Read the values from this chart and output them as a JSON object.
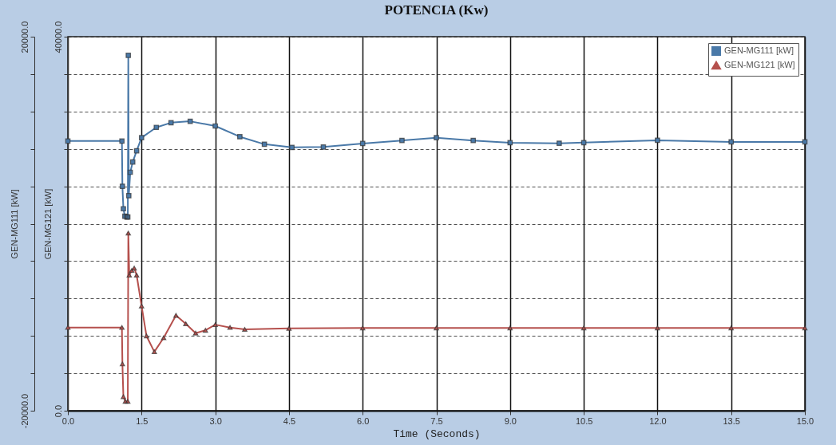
{
  "chart_data": {
    "type": "line",
    "title": "POTENCIA (Kw)",
    "xlabel": "Time (Seconds)",
    "ylabel": "GEN-MG111 [kW]",
    "y2label": "GEN-MG121 [kW]",
    "xlim": [
      0,
      15
    ],
    "xticks": [
      {
        "value": 0,
        "label": "0.0"
      },
      1.5,
      {
        "value": 3,
        "label": "3.0"
      },
      4.5,
      {
        "value": 6,
        "label": "6.0"
      },
      7.5,
      {
        "value": 9,
        "label": "9.0"
      },
      10.5,
      {
        "value": 12,
        "label": "12.0"
      },
      13.5,
      {
        "value": 15,
        "label": "15.0"
      }
    ],
    "ylim": [
      -20000,
      20000
    ],
    "yticks": [
      {
        "value": -20000,
        "label": "-20000.0"
      },
      {
        "value": -16000,
        "label": null
      },
      {
        "value": -12000,
        "label": null
      },
      {
        "value": -8000,
        "label": null
      },
      {
        "value": -4000,
        "label": null
      },
      {
        "value": 0,
        "label": null
      },
      {
        "value": 4000,
        "label": null
      },
      {
        "value": 8000,
        "label": null
      },
      {
        "value": 12000,
        "label": null
      },
      {
        "value": 16000,
        "label": null
      },
      {
        "value": 20000,
        "label": "20000.0"
      }
    ],
    "y2lim": [
      0,
      40000
    ],
    "y2ticks": [
      {
        "value": 0,
        "label": "0.0"
      },
      {
        "value": 4000,
        "label": null
      },
      {
        "value": 8000,
        "label": null
      },
      {
        "value": 12000,
        "label": null
      },
      {
        "value": 16000,
        "label": null
      },
      {
        "value": 20000,
        "label": null
      },
      {
        "value": 24000,
        "label": null
      },
      {
        "value": 28000,
        "label": null
      },
      {
        "value": 32000,
        "label": null
      },
      {
        "value": 36000,
        "label": null
      },
      {
        "value": 40000,
        "label": "40000.0"
      }
    ],
    "grid": true,
    "legend": "top right",
    "line_style": "solid",
    "series": [
      {
        "name": "GEN-MG111 [kW]",
        "color": "#4a79a8",
        "marker": "square",
        "axis": "y",
        "x": [
          0,
          1.1,
          1.11,
          1.13,
          1.16,
          1.2,
          1.22,
          1.23,
          1.24,
          1.27,
          1.32,
          1.4,
          1.5,
          1.8,
          2.1,
          2.49,
          3.0,
          3.5,
          4.0,
          4.56,
          5.2,
          6.0,
          6.8,
          7.5,
          8.25,
          9.0,
          10.0,
          10.5,
          12.0,
          13.5,
          15.0
        ],
        "values": [
          8840,
          8840,
          4000,
          1600,
          800,
          720,
          720,
          18000,
          3000,
          5500,
          6600,
          7800,
          9200,
          10300,
          10800,
          10950,
          10450,
          9300,
          8500,
          8160,
          8200,
          8580,
          8900,
          9200,
          8900,
          8660,
          8600,
          8670,
          8920,
          8750,
          8750
        ]
      },
      {
        "name": "GEN-MG121 [kW]",
        "color": "#b5504d",
        "marker": "triangle",
        "axis": "y2",
        "x": [
          0,
          1.1,
          1.11,
          1.13,
          1.17,
          1.22,
          1.23,
          1.25,
          1.3,
          1.35,
          1.4,
          1.5,
          1.6,
          1.76,
          1.95,
          2.2,
          2.4,
          2.6,
          2.8,
          3.0,
          3.3,
          3.6,
          4.5,
          6.0,
          7.5,
          9.0,
          10.5,
          12.0,
          13.5,
          15.0
        ],
        "values": [
          8900,
          8900,
          5000,
          1500,
          1000,
          1000,
          19000,
          14500,
          15000,
          15250,
          14500,
          11200,
          8000,
          6300,
          7800,
          10200,
          9300,
          8300,
          8600,
          9200,
          8900,
          8700,
          8800,
          8850,
          8850,
          8850,
          8850,
          8850,
          8850,
          8850
        ]
      }
    ]
  }
}
